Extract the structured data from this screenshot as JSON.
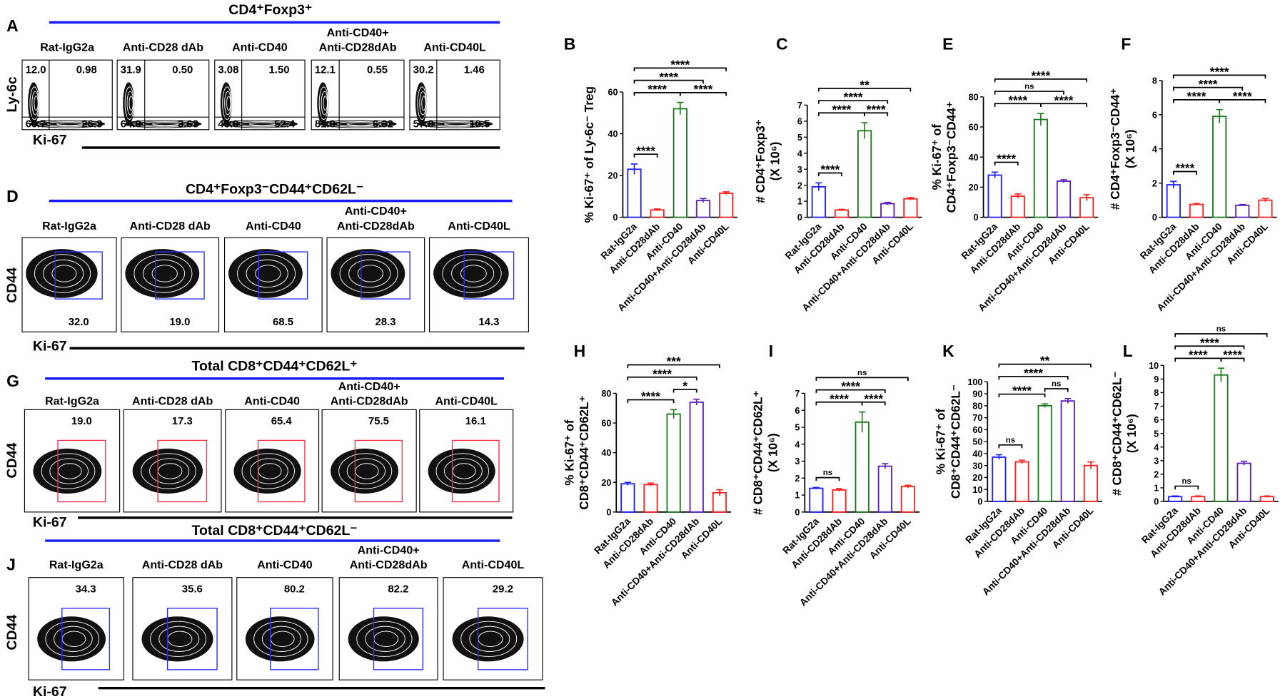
{
  "flow_rows": [
    {
      "panel": "A",
      "title": "CD4⁺Foxp3⁺",
      "y_label": "Ly-6c",
      "x_label": "Ki-67",
      "plots": [
        {
          "label": [
            "Rat-IgG2a"
          ],
          "values": [
            "12.0",
            "0.98",
            "60.7",
            "26.3"
          ]
        },
        {
          "label": [
            "Anti-CD28 dAb"
          ],
          "values": [
            "31.9",
            "0.50",
            "64.0",
            "3.63"
          ]
        },
        {
          "label": [
            "Anti-CD40"
          ],
          "values": [
            "3.08",
            "1.50",
            "43.0",
            "52.4"
          ]
        },
        {
          "label": [
            "Anti-CD40+",
            "Anti-CD28dAb"
          ],
          "values": [
            "12.1",
            "0.55",
            "81.0",
            "6.32"
          ]
        },
        {
          "label": [
            "Anti-CD40L"
          ],
          "values": [
            "30.2",
            "1.46",
            "57.8",
            "10.5"
          ]
        }
      ]
    },
    {
      "panel": "D",
      "title": "CD4⁺Foxp3⁻CD44⁺CD62L⁻",
      "y_label": "CD44",
      "x_label": "Ki-67",
      "gate_color": "#2b2bff",
      "plots": [
        {
          "label": [
            "Rat-IgG2a"
          ],
          "values": [
            "32.0"
          ]
        },
        {
          "label": [
            "Anti-CD28 dAb"
          ],
          "values": [
            "19.0"
          ]
        },
        {
          "label": [
            "Anti-CD40"
          ],
          "values": [
            "68.5"
          ]
        },
        {
          "label": [
            "Anti-CD40+",
            "Anti-CD28dAb"
          ],
          "values": [
            "28.3"
          ]
        },
        {
          "label": [
            "Anti-CD40L"
          ],
          "values": [
            "14.3"
          ]
        }
      ]
    },
    {
      "panel": "G",
      "title": "Total CD8⁺CD44⁺CD62L⁺",
      "y_label": "CD44",
      "x_label": "Ki-67",
      "gate_color": "#ff2b4a",
      "plots": [
        {
          "label": [
            "Rat-IgG2a"
          ],
          "values": [
            "19.0"
          ]
        },
        {
          "label": [
            "Anti-CD28 dAb"
          ],
          "values": [
            "17.3"
          ]
        },
        {
          "label": [
            "Anti-CD40"
          ],
          "values": [
            "65.4"
          ]
        },
        {
          "label": [
            "Anti-CD40+",
            "Anti-CD28dAb"
          ],
          "values": [
            "75.5"
          ]
        },
        {
          "label": [
            "Anti-CD40L"
          ],
          "values": [
            "16.1"
          ]
        }
      ]
    },
    {
      "panel": "J",
      "title": "Total CD8⁺CD44⁺CD62L⁻",
      "y_label": "CD44",
      "x_label": "Ki-67",
      "gate_color": "#2b2bff",
      "plots": [
        {
          "label": [
            "Rat-IgG2a"
          ],
          "values": [
            "34.3"
          ]
        },
        {
          "label": [
            "Anti-CD28 dAb"
          ],
          "values": [
            "35.6"
          ]
        },
        {
          "label": [
            "Anti-CD40"
          ],
          "values": [
            "80.2"
          ]
        },
        {
          "label": [
            "Anti-CD40+",
            "Anti-CD28dAb"
          ],
          "values": [
            "82.2"
          ]
        },
        {
          "label": [
            "Anti-CD40L"
          ],
          "values": [
            "29.2"
          ]
        }
      ]
    }
  ],
  "chart_data": [
    {
      "type": "bar",
      "panel": "B",
      "ylabel": [
        "% Ki-67⁺ of Ly-6c⁻ Treg"
      ],
      "categories": [
        "Rat-IgG2a",
        "Anti-CD28dAb",
        "Anti-CD40",
        "Anti-CD40+Anti-CD28dAb",
        "Anti-CD40L"
      ],
      "values": [
        23,
        3.5,
        52,
        8,
        11.5
      ],
      "errors": [
        2.5,
        0.5,
        3,
        1,
        0.7
      ],
      "colors": [
        "#1f1fff",
        "#ff2020",
        "#1a7a1a",
        "#5a1fc0",
        "#ff2020"
      ],
      "ylim": [
        0,
        60
      ],
      "yticks": [
        0,
        20,
        40,
        60
      ],
      "significance": [
        {
          "from": 0,
          "to": 1,
          "label": "****"
        },
        {
          "from": 0,
          "to": 2,
          "label": "****"
        },
        {
          "from": 2,
          "to": 4,
          "label": "****"
        },
        {
          "from": 0,
          "to": 3,
          "label": "****"
        },
        {
          "from": 0,
          "to": 4,
          "label": "****"
        }
      ]
    },
    {
      "type": "bar",
      "panel": "C",
      "ylabel": [
        "# CD4⁺Foxp3⁺",
        "(X 10⁶)"
      ],
      "categories": [
        "Rat-IgG2a",
        "Anti-CD28dAb",
        "Anti-CD40",
        "Anti-CD40+Anti-CD28dAb",
        "Anti-CD40L"
      ],
      "values": [
        1.9,
        0.45,
        5.4,
        0.85,
        1.15
      ],
      "errors": [
        0.25,
        0.05,
        0.5,
        0.08,
        0.08
      ],
      "colors": [
        "#1f1fff",
        "#ff2020",
        "#1a7a1a",
        "#5a1fc0",
        "#ff2020"
      ],
      "ylim": [
        0,
        7
      ],
      "yticks": [
        0,
        1,
        2,
        3,
        4,
        5,
        6,
        7
      ],
      "significance": [
        {
          "from": 0,
          "to": 1,
          "label": "****"
        },
        {
          "from": 0,
          "to": 2,
          "label": "****"
        },
        {
          "from": 2,
          "to": 3,
          "label": "****"
        },
        {
          "from": 0,
          "to": 3,
          "label": "****"
        },
        {
          "from": 0,
          "to": 4,
          "label": "**"
        }
      ]
    },
    {
      "type": "bar",
      "panel": "E",
      "ylabel": [
        "% Ki-67⁺ of",
        "CD4⁺Foxp3⁻CD44⁺"
      ],
      "categories": [
        "Rat-IgG2a",
        "Anti-CD28dAb",
        "Anti-CD40",
        "Anti-CD40+Anti-CD28dAb",
        "Anti-CD40L"
      ],
      "values": [
        28,
        14,
        65,
        24,
        13
      ],
      "errors": [
        2,
        1.5,
        4,
        1,
        2
      ],
      "colors": [
        "#1f1fff",
        "#ff2020",
        "#1a7a1a",
        "#5a1fc0",
        "#ff2020"
      ],
      "ylim": [
        0,
        80
      ],
      "yticks": [
        0,
        20,
        40,
        60,
        80
      ],
      "significance": [
        {
          "from": 0,
          "to": 1,
          "label": "****"
        },
        {
          "from": 0,
          "to": 2,
          "label": "****"
        },
        {
          "from": 2,
          "to": 4,
          "label": "****"
        },
        {
          "from": 0,
          "to": 3,
          "label": "ns"
        },
        {
          "from": 0,
          "to": 4,
          "label": "****"
        }
      ]
    },
    {
      "type": "bar",
      "panel": "F",
      "ylabel": [
        "# CD4⁺Foxp3⁻CD44⁺",
        "(X 10⁶)"
      ],
      "categories": [
        "Rat-IgG2a",
        "Anti-CD28dAb",
        "Anti-CD40",
        "Anti-CD40+Anti-CD28dAb",
        "Anti-CD40L"
      ],
      "values": [
        1.9,
        0.75,
        5.9,
        0.7,
        1.0
      ],
      "errors": [
        0.2,
        0.05,
        0.4,
        0.05,
        0.1
      ],
      "colors": [
        "#1f1fff",
        "#ff2020",
        "#1a7a1a",
        "#5a1fc0",
        "#ff2020"
      ],
      "ylim": [
        0,
        8
      ],
      "yticks": [
        0,
        2,
        4,
        6,
        8
      ],
      "significance": [
        {
          "from": 0,
          "to": 1,
          "label": "****"
        },
        {
          "from": 0,
          "to": 2,
          "label": "****"
        },
        {
          "from": 2,
          "to": 4,
          "label": "****"
        },
        {
          "from": 0,
          "to": 3,
          "label": "****"
        },
        {
          "from": 0,
          "to": 4,
          "label": "****"
        }
      ]
    },
    {
      "type": "bar",
      "panel": "H",
      "ylabel": [
        "% Ki-67⁺ of",
        "CD8⁺CD44⁺CD62L⁺"
      ],
      "categories": [
        "Rat-IgG2a",
        "Anti-CD28dAb",
        "Anti-CD40",
        "Anti-CD40+Anti-CD28dAb",
        "Anti-CD40L"
      ],
      "values": [
        19,
        18.5,
        66,
        74,
        13
      ],
      "errors": [
        1,
        1,
        3,
        2,
        2
      ],
      "colors": [
        "#1f1fff",
        "#ff2020",
        "#1a7a1a",
        "#5a1fc0",
        "#ff2020"
      ],
      "ylim": [
        0,
        80
      ],
      "yticks": [
        0,
        20,
        40,
        60,
        80
      ],
      "significance": [
        {
          "from": 0,
          "to": 2,
          "label": "****"
        },
        {
          "from": 2,
          "to": 3,
          "label": "*"
        },
        {
          "from": 0,
          "to": 3,
          "label": "****"
        },
        {
          "from": 0,
          "to": 4,
          "label": "***"
        }
      ]
    },
    {
      "type": "bar",
      "panel": "I",
      "ylabel": [
        "# CD8⁺CD44⁺CD62L⁺",
        "(X 10⁶)"
      ],
      "categories": [
        "Rat-IgG2a",
        "Anti-CD28dAb",
        "Anti-CD40",
        "Anti-CD40+Anti-CD28dAb",
        "Anti-CD40L"
      ],
      "values": [
        1.4,
        1.3,
        5.3,
        2.7,
        1.5
      ],
      "errors": [
        0.05,
        0.08,
        0.6,
        0.15,
        0.08
      ],
      "colors": [
        "#1f1fff",
        "#ff2020",
        "#1a7a1a",
        "#5a1fc0",
        "#ff2020"
      ],
      "ylim": [
        0,
        7
      ],
      "yticks": [
        0,
        1,
        2,
        3,
        4,
        5,
        6,
        7
      ],
      "significance": [
        {
          "from": 0,
          "to": 1,
          "label": "ns"
        },
        {
          "from": 0,
          "to": 2,
          "label": "****"
        },
        {
          "from": 2,
          "to": 3,
          "label": "****"
        },
        {
          "from": 0,
          "to": 3,
          "label": "****"
        },
        {
          "from": 0,
          "to": 4,
          "label": "ns"
        }
      ]
    },
    {
      "type": "bar",
      "panel": "K",
      "ylabel": [
        "% Ki-67⁺ of",
        "CD8⁺CD44⁺CD62L⁻"
      ],
      "categories": [
        "Rat-IgG2a",
        "Anti-CD28dAb",
        "Anti-CD40",
        "Anti-CD40+Anti-CD28dAb",
        "Anti-CD40L"
      ],
      "values": [
        37,
        33,
        80,
        84,
        30
      ],
      "errors": [
        2,
        1.5,
        1.5,
        2,
        3
      ],
      "colors": [
        "#1f1fff",
        "#ff2020",
        "#1a7a1a",
        "#5a1fc0",
        "#ff2020"
      ],
      "ylim": [
        0,
        100
      ],
      "yticks": [
        0,
        10,
        20,
        30,
        40,
        50,
        60,
        70,
        80,
        90,
        100
      ],
      "significance": [
        {
          "from": 0,
          "to": 1,
          "label": "ns"
        },
        {
          "from": 0,
          "to": 2,
          "label": "****"
        },
        {
          "from": 2,
          "to": 3,
          "label": "ns"
        },
        {
          "from": 0,
          "to": 3,
          "label": "****"
        },
        {
          "from": 0,
          "to": 4,
          "label": "**"
        }
      ]
    },
    {
      "type": "bar",
      "panel": "L",
      "ylabel": [
        "# CD8⁺CD44⁺CD62L⁻",
        "(X 10⁶)"
      ],
      "categories": [
        "Rat-IgG2a",
        "Anti-CD28dAb",
        "Anti-CD40",
        "Anti-CD40+Anti-CD28dAb",
        "Anti-CD40L"
      ],
      "values": [
        0.35,
        0.35,
        9.3,
        2.8,
        0.35
      ],
      "errors": [
        0.05,
        0.05,
        0.5,
        0.15,
        0.05
      ],
      "colors": [
        "#1f1fff",
        "#ff2020",
        "#1a7a1a",
        "#5a1fc0",
        "#ff2020"
      ],
      "ylim": [
        0,
        10
      ],
      "yticks": [
        0,
        1,
        2,
        3,
        4,
        5,
        6,
        7,
        8,
        9,
        10
      ],
      "significance": [
        {
          "from": 0,
          "to": 1,
          "label": "ns"
        },
        {
          "from": 0,
          "to": 2,
          "label": "****"
        },
        {
          "from": 2,
          "to": 3,
          "label": "****"
        },
        {
          "from": 0,
          "to": 3,
          "label": "****"
        },
        {
          "from": 0,
          "to": 4,
          "label": "ns"
        }
      ]
    }
  ]
}
